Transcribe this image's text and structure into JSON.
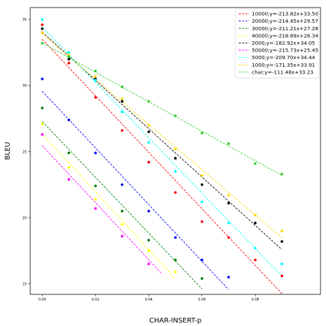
{
  "chart_data": {
    "type": "scatter",
    "xlabel": "CHAR-INSERT-p",
    "ylabel": "BLEU",
    "xlim": [
      -0.0045,
      0.1045
    ],
    "ylim": [
      14.2,
      35.9
    ],
    "xticks": [
      "0.00",
      "0.02",
      "0.04",
      "0.06",
      "0.08"
    ],
    "xtick_values": [
      0.0,
      0.02,
      0.04,
      0.06,
      0.08
    ],
    "yticks": [
      "15",
      "20",
      "25",
      "30",
      "35"
    ],
    "ytick_values": [
      15,
      20,
      25,
      30,
      35
    ],
    "grid": false,
    "legend_position": "top-right",
    "series": [
      {
        "name": "10000;y=-213.82x+33.50",
        "color": "#ff0000",
        "slope": -213.82,
        "intercept": 33.5,
        "fit_x": [
          0.0,
          0.09
        ],
        "x": [
          0.0,
          0.01,
          0.02,
          0.03,
          0.04,
          0.05,
          0.06,
          0.07,
          0.08,
          0.09
        ],
        "y": [
          34.6,
          31.7,
          29.1,
          26.6,
          24.2,
          21.9,
          19.7,
          18.5,
          16.8,
          15.6
        ]
      },
      {
        "name": "20000;y=-214.45x+29.57",
        "color": "#0000ff",
        "slope": -214.45,
        "intercept": 29.57,
        "fit_x": [
          0.0,
          0.07
        ],
        "x": [
          0.0,
          0.01,
          0.02,
          0.03,
          0.04,
          0.05,
          0.06,
          0.07
        ],
        "y": [
          30.5,
          27.4,
          24.9,
          22.5,
          20.5,
          18.5,
          16.8,
          15.5
        ]
      },
      {
        "name": "30000;y=-211.21x+27.28",
        "color": "#008000",
        "slope": -211.21,
        "intercept": 27.28,
        "fit_x": [
          0.0,
          0.06
        ],
        "x": [
          0.0,
          0.01,
          0.02,
          0.03,
          0.04,
          0.05,
          0.06
        ],
        "y": [
          28.3,
          24.9,
          22.4,
          20.5,
          18.3,
          16.8,
          15.4
        ]
      },
      {
        "name": "40000;y=-218.69x+26.34",
        "color": "#ffff00",
        "slope": -218.69,
        "intercept": 26.34,
        "fit_x": [
          0.0,
          0.05
        ],
        "x": [
          0.0,
          0.01,
          0.02,
          0.03,
          0.04,
          0.05
        ],
        "y": [
          27.1,
          23.8,
          21.4,
          19.5,
          17.5,
          15.9
        ]
      },
      {
        "name": "2000;y=-182.92x+34.05",
        "color": "#000000",
        "slope": -182.92,
        "intercept": 34.05,
        "fit_x": [
          0.0,
          0.09
        ],
        "x": [
          0.0,
          0.01,
          0.02,
          0.03,
          0.04,
          0.05,
          0.06,
          0.07,
          0.08,
          0.09
        ],
        "y": [
          34.3,
          32.0,
          30.5,
          28.8,
          26.5,
          24.5,
          22.5,
          21.1,
          19.6,
          18.2
        ]
      },
      {
        "name": "50000;y=-215.73x+25.45",
        "color": "#ff00ff",
        "slope": -215.73,
        "intercept": 25.45,
        "fit_x": [
          0.0,
          0.045
        ],
        "x": [
          0.0,
          0.01,
          0.02,
          0.03,
          0.04
        ],
        "y": [
          26.3,
          22.9,
          20.7,
          18.6,
          16.5
        ]
      },
      {
        "name": "5000;y=-209.70x+34.44",
        "color": "#00ffff",
        "slope": -209.7,
        "intercept": 34.44,
        "fit_x": [
          0.0,
          0.09
        ],
        "x": [
          0.0,
          0.01,
          0.02,
          0.03,
          0.04,
          0.05,
          0.06,
          0.07,
          0.08,
          0.09
        ],
        "y": [
          35.0,
          32.5,
          30.4,
          28.0,
          25.7,
          23.5,
          21.2,
          19.6,
          17.7,
          16.5
        ]
      },
      {
        "name": "1000;y=-171.35x+33.91",
        "color": "#ffd700",
        "slope": -171.35,
        "intercept": 33.91,
        "fit_x": [
          0.0,
          0.09
        ],
        "x": [
          0.0,
          0.01,
          0.02,
          0.03,
          0.04,
          0.05,
          0.06,
          0.07,
          0.08,
          0.09
        ],
        "y": [
          34.0,
          32.3,
          30.7,
          29.0,
          27.0,
          25.2,
          23.2,
          21.7,
          20.2,
          19.0
        ]
      },
      {
        "name": "char;y=-111.48x+33.23",
        "color": "#32cd32",
        "slope": -111.48,
        "intercept": 33.23,
        "fit_x": [
          0.0,
          0.09
        ],
        "x": [
          0.0,
          0.01,
          0.02,
          0.03,
          0.04,
          0.05,
          0.06,
          0.07,
          0.08,
          0.09
        ],
        "y": [
          33.2,
          32.2,
          31.1,
          29.9,
          28.8,
          27.7,
          26.4,
          25.6,
          24.1,
          23.3
        ]
      }
    ]
  }
}
